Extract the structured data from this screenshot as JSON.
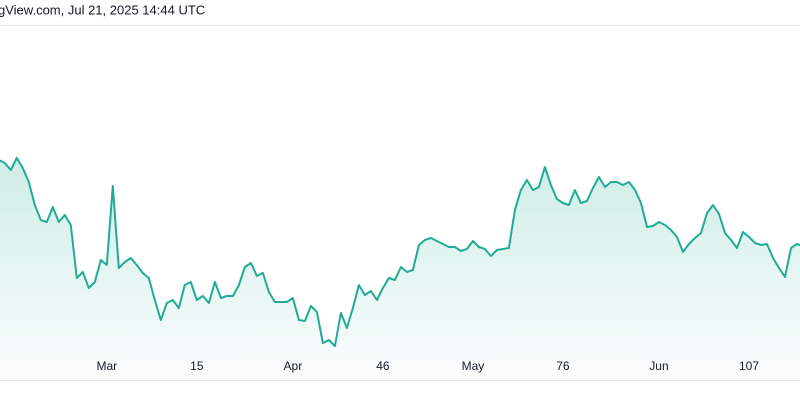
{
  "chart_data": {
    "type": "area",
    "caption": "gView.com, Jul 21, 2025 14:44 UTC",
    "color": "#22ab94",
    "x": [
      -18,
      -17,
      -16,
      -15,
      -14,
      -13,
      -12,
      -11,
      -10,
      -9,
      -8,
      -7,
      -6,
      -5,
      -4,
      -3,
      -2,
      -1,
      0,
      1,
      2,
      3,
      4,
      5,
      6,
      7,
      8,
      9,
      10,
      11,
      12,
      13,
      14,
      15,
      16,
      17,
      18,
      19,
      20,
      21,
      22,
      23,
      24,
      25,
      26,
      27,
      28,
      29,
      30,
      31,
      32,
      33,
      34,
      35,
      36,
      37,
      38,
      39,
      40,
      41,
      42,
      43,
      44,
      45,
      46,
      47,
      48,
      49,
      50,
      51,
      52,
      53,
      54,
      55,
      56,
      57,
      58,
      59,
      60,
      61,
      62,
      63,
      64,
      65,
      66,
      67,
      68,
      69,
      70,
      71,
      72,
      73,
      74,
      75,
      76,
      77,
      78,
      79,
      80,
      81,
      82,
      83,
      84,
      85,
      86,
      87,
      88,
      89,
      90,
      91,
      92,
      93,
      94,
      95,
      96,
      97,
      98,
      99,
      100,
      101,
      102,
      103,
      104,
      105,
      106,
      107,
      108,
      109,
      110,
      111,
      112,
      113,
      114,
      115,
      116
    ],
    "values": [
      220,
      217,
      210,
      222,
      212,
      198,
      175,
      160,
      158,
      173,
      158,
      165,
      155,
      102,
      108,
      92,
      98,
      120,
      115,
      194,
      112,
      118,
      122,
      115,
      107,
      102,
      80,
      60,
      77,
      80,
      72,
      95,
      98,
      80,
      84,
      77,
      98,
      82,
      84,
      84,
      95,
      113,
      117,
      104,
      107,
      88,
      78,
      78,
      78,
      82,
      60,
      59,
      74,
      68,
      37,
      40,
      34,
      67,
      52,
      72,
      95,
      85,
      89,
      80,
      92,
      102,
      100,
      113,
      108,
      110,
      135,
      140,
      142,
      139,
      136,
      133,
      133,
      129,
      131,
      139,
      133,
      131,
      124,
      130,
      131,
      132,
      170,
      190,
      200,
      190,
      193,
      213,
      195,
      181,
      177,
      175,
      190,
      177,
      179,
      192,
      203,
      193,
      198,
      198,
      195,
      198,
      190,
      177,
      153,
      154,
      158,
      155,
      150,
      143,
      128,
      136,
      142,
      147,
      167,
      175,
      166,
      147,
      140,
      132,
      148,
      143,
      137,
      135,
      136,
      122,
      112,
      103,
      132,
      136,
      134
    ],
    "xlim": [
      -17.8,
      115.5
    ],
    "ylim": [
      0,
      355
    ],
    "xticks": [
      {
        "value": 0,
        "label": "Mar"
      },
      15,
      {
        "value": 31,
        "label": "Apr"
      },
      46,
      {
        "value": 61,
        "label": "May"
      },
      76,
      {
        "value": 92,
        "label": "Jun"
      },
      107
    ]
  }
}
